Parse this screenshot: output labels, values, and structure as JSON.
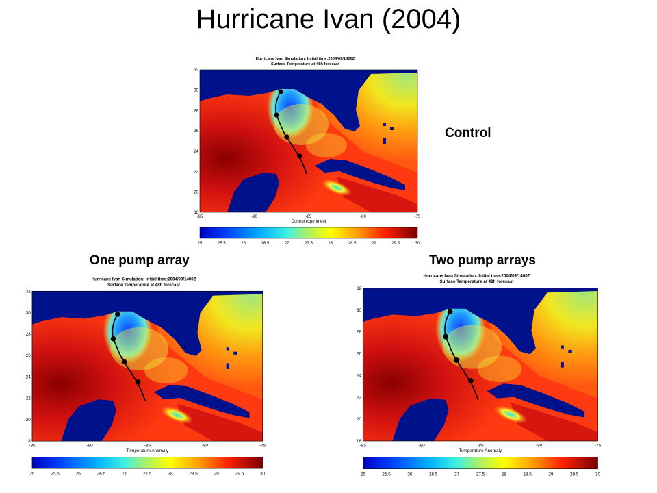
{
  "slide": {
    "title": "Hurricane Ivan (2004)"
  },
  "panels": [
    {
      "key": "control",
      "label": "Control",
      "sim_title_line1": "Hurricane Ivan Simulation: Initial time:2004/09/1400Z",
      "sim_title_line2": "Surface Temperature at  48h forecast",
      "xlabel": "Control experiment"
    },
    {
      "key": "one",
      "label": "One pump array",
      "sim_title_line1": "Hurricane Ivan Simulation: Initial time:2004/09/1400Z",
      "sim_title_line2": "Surface Temperature at  48h forecast",
      "xlabel": "Temperature Anomaly"
    },
    {
      "key": "two",
      "label": "Two pump arrays",
      "sim_title_line1": "Hurricane Ivan Simulation: Initial time:2004/09/1400Z",
      "sim_title_line2": "Surface Temperature at  48h forecast",
      "xlabel": "Temperature Anomaly"
    }
  ],
  "map": {
    "x_ticks": [
      "-95",
      "-90",
      "-85",
      "-80",
      "-75"
    ],
    "y_ticks": [
      "32",
      "30",
      "28",
      "26",
      "24",
      "22",
      "20",
      "18"
    ],
    "colorbar_ticks": [
      "25",
      "25.5",
      "26",
      "26.5",
      "27",
      "27.5",
      "28",
      "28.5",
      "29",
      "29.5",
      "30"
    ],
    "land_color": "#00118c",
    "track_color": "#000000"
  }
}
